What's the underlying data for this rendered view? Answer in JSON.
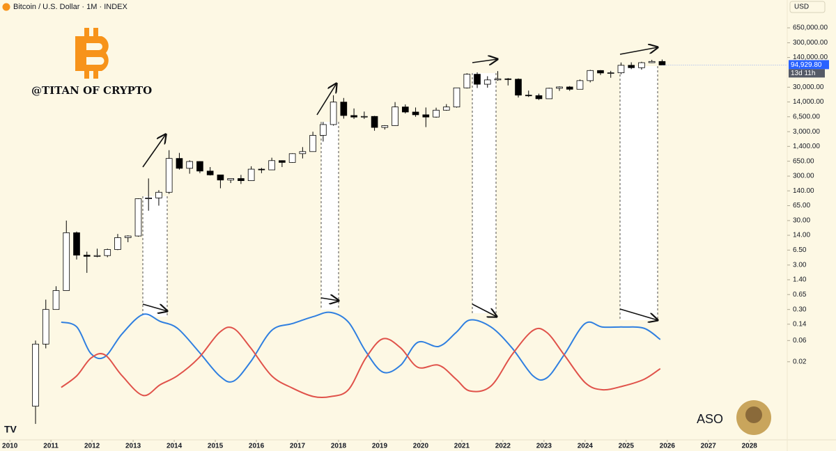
{
  "chart_data": {
    "type": "candlestick",
    "title": "Bitcoin / U.S. Dollar · 1M · INDEX",
    "currency": "USD",
    "watermark": "@TITAN OF CRYPTO",
    "signature": "ASO",
    "log_scale": true,
    "up_color": "#ffffff",
    "down_color": "#000000",
    "x": [
      2010.625,
      2010.875,
      2011.125,
      2011.375,
      2011.625,
      2011.875,
      2012.125,
      2012.375,
      2012.625,
      2012.875,
      2013.125,
      2013.375,
      2013.625,
      2013.875,
      2014.125,
      2014.375,
      2014.625,
      2014.875,
      2015.125,
      2015.375,
      2015.625,
      2015.875,
      2016.125,
      2016.375,
      2016.625,
      2016.875,
      2017.125,
      2017.375,
      2017.625,
      2017.875,
      2018.125,
      2018.375,
      2018.625,
      2018.875,
      2019.125,
      2019.375,
      2019.625,
      2019.875,
      2020.125,
      2020.375,
      2020.625,
      2020.875,
      2021.125,
      2021.375,
      2021.625,
      2021.875,
      2022.125,
      2022.375,
      2022.625,
      2022.875,
      2023.125,
      2023.375,
      2023.625,
      2023.875,
      2024.125,
      2024.375,
      2024.625,
      2024.875,
      2025.125,
      2025.375,
      2025.625,
      2025.875
    ],
    "open": [
      0.002,
      0.05,
      0.3,
      0.8,
      16,
      5,
      4.7,
      4.9,
      6.7,
      12.4,
      13.5,
      93,
      97,
      130,
      750,
      450,
      640,
      390,
      320,
      245,
      265,
      237,
      430,
      415,
      670,
      610,
      960,
      1070,
      2480,
      4340,
      13900,
      6930,
      6390,
      6620,
      3740,
      4100,
      10800,
      8300,
      7200,
      6400,
      9140,
      10780,
      29000,
      58800,
      35000,
      43800,
      46300,
      45500,
      19900,
      19400,
      16500,
      28400,
      30400,
      27000,
      42200,
      71300,
      62700,
      63300,
      93400,
      82500,
      107000,
      114000
    ],
    "high": [
      0.06,
      0.5,
      1,
      30,
      17,
      6,
      7,
      7,
      15,
      14,
      95,
      266,
      145,
      1150,
      1000,
      680,
      650,
      480,
      320,
      265,
      320,
      500,
      460,
      780,
      680,
      980,
      1350,
      2990,
      4980,
      19800,
      17200,
      9990,
      8500,
      6800,
      4200,
      13900,
      12300,
      10500,
      10500,
      10400,
      12500,
      29300,
      61800,
      64900,
      53000,
      69000,
      48200,
      47400,
      25200,
      21500,
      29200,
      31400,
      31800,
      44700,
      73800,
      72800,
      70000,
      108000,
      109000,
      112000,
      124000,
      126000
    ],
    "low": [
      0.0008,
      0.04,
      0.3,
      0.8,
      4,
      2,
      4.5,
      4.5,
      6.5,
      9.8,
      13,
      50,
      65,
      120,
      420,
      340,
      350,
      310,
      160,
      210,
      200,
      235,
      350,
      415,
      480,
      600,
      750,
      1060,
      1800,
      4100,
      5900,
      5800,
      5800,
      3150,
      3350,
      4050,
      7700,
      6500,
      3800,
      6200,
      8900,
      10400,
      28100,
      28800,
      29300,
      42000,
      32900,
      17600,
      18100,
      15500,
      16500,
      24800,
      24900,
      26900,
      38500,
      56500,
      49000,
      58900,
      76600,
      74500,
      105000,
      94000
    ],
    "close": [
      0.05,
      0.3,
      0.8,
      16,
      5,
      4.7,
      4.9,
      6.7,
      12.4,
      13.5,
      93,
      97,
      130,
      750,
      450,
      640,
      390,
      320,
      245,
      265,
      237,
      430,
      415,
      670,
      610,
      960,
      1070,
      2480,
      4340,
      13900,
      6930,
      6390,
      6620,
      3740,
      4100,
      10800,
      8300,
      7200,
      6400,
      9140,
      10780,
      29000,
      58800,
      35000,
      43800,
      46300,
      45500,
      19900,
      19400,
      16500,
      28400,
      30400,
      27000,
      42200,
      71300,
      62700,
      63300,
      93400,
      82500,
      107000,
      114000,
      94929.8
    ],
    "last_price": {
      "value": 94929.8,
      "label": "94,929.80"
    },
    "countdown": "13d 11h",
    "overlay": {
      "x": [
        2011.25,
        2011.63,
        2011.97,
        2012.31,
        2012.73,
        2013.24,
        2013.66,
        2014.08,
        2014.59,
        2015.1,
        2015.44,
        2015.86,
        2016.37,
        2016.88,
        2017.39,
        2017.81,
        2018.24,
        2018.66,
        2019.08,
        2019.51,
        2019.93,
        2020.44,
        2020.86,
        2021.2,
        2021.71,
        2022.22,
        2022.73,
        2023.07,
        2023.49,
        2024.0,
        2024.42,
        2024.93,
        2025.44,
        2025.83
      ],
      "series": [
        {
          "color": "#2f7fe0",
          "values": [
            0.156,
            0.121,
            0.0308,
            0.0258,
            0.0846,
            0.232,
            0.162,
            0.113,
            0.0344,
            0.0097,
            0.0073,
            0.02,
            0.101,
            0.145,
            0.208,
            0.258,
            0.156,
            0.0344,
            0.0117,
            0.0167,
            0.0548,
            0.0443,
            0.091,
            0.174,
            0.121,
            0.0411,
            0.0097,
            0.0087,
            0.0287,
            0.145,
            0.121,
            0.121,
            0.113,
            0.0634
          ]
        },
        {
          "color": "#e0524a",
          "values": [
            0.0053,
            0.0097,
            0.024,
            0.0287,
            0.0097,
            0.0035,
            0.0061,
            0.0097,
            0.024,
            0.091,
            0.113,
            0.0411,
            0.0097,
            0.0051,
            0.0033,
            0.0033,
            0.0047,
            0.024,
            0.0658,
            0.0411,
            0.015,
            0.0167,
            0.0081,
            0.0044,
            0.0057,
            0.0287,
            0.101,
            0.091,
            0.0287,
            0.0068,
            0.0047,
            0.0057,
            0.0081,
            0.014
          ]
        }
      ]
    },
    "xlim": [
      2009.76,
      2028.92
    ],
    "xticks": [
      2010,
      2011,
      2012,
      2013,
      2014,
      2015,
      2016,
      2017,
      2018,
      2019,
      2020,
      2021,
      2022,
      2023,
      2024,
      2025,
      2026,
      2027,
      2028
    ],
    "ylim": [
      0.00035,
      2750000
    ],
    "yticks": [
      {
        "value": 650000,
        "label": "650,000.00"
      },
      {
        "value": 300000,
        "label": "300,000.00"
      },
      {
        "value": 140000,
        "label": "140,000.00"
      },
      {
        "value": 30000,
        "label": "30,000.00"
      },
      {
        "value": 14000,
        "label": "14,000.00"
      },
      {
        "value": 6500,
        "label": "6,500.00"
      },
      {
        "value": 3000,
        "label": "3,000.00"
      },
      {
        "value": 1400,
        "label": "1,400.00"
      },
      {
        "value": 650,
        "label": "650.00"
      },
      {
        "value": 300,
        "label": "300.00"
      },
      {
        "value": 140,
        "label": "140.00"
      },
      {
        "value": 65,
        "label": "65.00"
      },
      {
        "value": 30,
        "label": "30.00"
      },
      {
        "value": 14,
        "label": "14.00"
      },
      {
        "value": 6.5,
        "label": "6.50"
      },
      {
        "value": 3,
        "label": "3.00"
      },
      {
        "value": 1.4,
        "label": "1.40"
      },
      0.65,
      {
        "value": 0.3,
        "label": "0.30"
      },
      0.14,
      0.06,
      0.02
    ]
  }
}
